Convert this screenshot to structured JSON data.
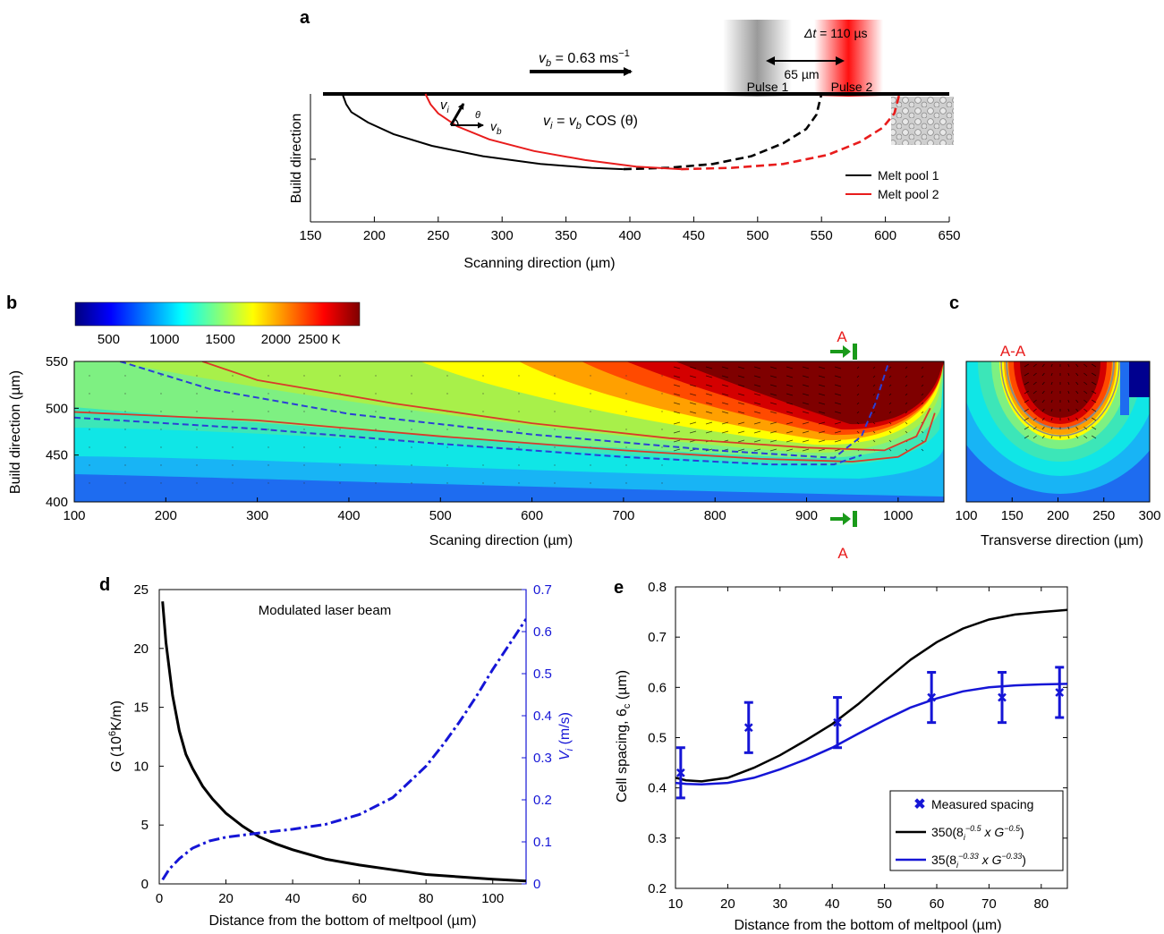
{
  "panels": {
    "a": "a",
    "b": "b",
    "c": "c",
    "d": "d",
    "e": "e"
  },
  "colors": {
    "black": "#000000",
    "red": "#e81c1c",
    "blue": "#1515d6",
    "green": "#1a9a1a"
  },
  "chart_data": [
    {
      "id": "a",
      "type": "line",
      "xlabel": "Scanning direction (µm)",
      "ylabel": "Build direction",
      "xlim": [
        150,
        650
      ],
      "xticks": [
        "150",
        "200",
        "250",
        "300",
        "350",
        "400",
        "450",
        "500",
        "550",
        "600",
        "650"
      ],
      "series": [
        {
          "name": "Melt pool 1",
          "color": "#000000",
          "solid": {
            "x": [
              175,
              178,
              182,
              195,
              215,
              245,
              285,
              330,
              370,
              395
            ],
            "y": [
              0,
              -8,
              -14,
              -22,
              -31,
              -40,
              -48,
              -54,
              -57,
              -58
            ]
          },
          "dashed": {
            "x": [
              395,
              430,
              465,
              495,
              520,
              538,
              546,
              550
            ],
            "y": [
              -58,
              -57,
              -54,
              -48,
              -38,
              -27,
              -16,
              0
            ]
          }
        },
        {
          "name": "Melt pool 2",
          "color": "#e81c1c",
          "solid": {
            "x": [
              240,
              244,
              250,
              265,
              290,
              325,
              365,
              405,
              440
            ],
            "y": [
              0,
              -8,
              -15,
              -25,
              -35,
              -44,
              -51,
              -56,
              -58
            ]
          },
          "dashed": {
            "x": [
              440,
              480,
              520,
              555,
              580,
              598,
              607,
              611
            ],
            "y": [
              -58,
              -57,
              -54,
              -47,
              -37,
              -26,
              -15,
              0
            ]
          }
        }
      ],
      "annotations": {
        "vb_label": "v",
        "vb_sub": "b",
        "vb_value": " = 0.63 ms",
        "vb_exp": "−1",
        "dt_label": "Δt",
        "dt_value": " = 110 µs",
        "dist_label": "65 µm",
        "pulse1": "Pulse 1",
        "pulse2": "Pulse 2",
        "vi": "v",
        "vi_sub": "i",
        "theta": "θ",
        "vb_small": "v",
        "vb_small_sub": "b",
        "eq_lhs": "v",
        "eq_lhs_sub": "i",
        "eq_mid": " = v",
        "eq_mid_sub": "b",
        "eq_rhs": " COS (θ)"
      }
    },
    {
      "id": "b",
      "type": "heatmap",
      "xlabel": "Scaning direction (µm)",
      "ylabel": "Build direction (µm)",
      "xlim": [
        100,
        1050
      ],
      "ylim": [
        400,
        550
      ],
      "xticks": [
        "100",
        "200",
        "300",
        "400",
        "500",
        "600",
        "700",
        "800",
        "900",
        "1000"
      ],
      "yticks": [
        "400",
        "450",
        "500",
        "550"
      ],
      "colorbar": {
        "ticks": [
          "500",
          "1000",
          "1500",
          "2000",
          "2500 K"
        ],
        "min": 200,
        "max": 2750
      },
      "section_label": "A",
      "contours": {
        "solid_red": [
          {
            "x": [
              100,
              300,
              500,
              700,
              850,
              950,
              1000,
              1030,
              1040
            ],
            "y": [
              496,
              487,
              470,
              455,
              446,
              443,
              448,
              465,
              495
            ]
          },
          {
            "x": [
              240,
              300,
              450,
              600,
              750,
              900,
              985,
              1020,
              1035
            ],
            "y": [
              550,
              530,
              505,
              484,
              468,
              458,
              455,
              470,
              500
            ]
          }
        ],
        "dashed_blue": [
          {
            "x": [
              100,
              300,
              500,
              700,
              860,
              930,
              960
            ],
            "y": [
              490,
              478,
              462,
              448,
              440,
              440,
              450
            ]
          },
          {
            "x": [
              150,
              250,
              400,
              600,
              800,
              930,
              960,
              975,
              990
            ],
            "y": [
              550,
              520,
              494,
              472,
              455,
              447,
              470,
              505,
              550
            ]
          }
        ]
      }
    },
    {
      "id": "c",
      "type": "heatmap",
      "title": "A-A",
      "xlabel": "Transverse direction (µm)",
      "xlim": [
        100,
        300
      ],
      "ylim": [
        400,
        550
      ],
      "xticks": [
        "100",
        "150",
        "200",
        "250",
        "300"
      ]
    },
    {
      "id": "d",
      "type": "line",
      "title": "Modulated laser beam",
      "xlabel": "Distance from the bottom of meltpool (µm)",
      "ylabel": "G (10⁶K/m)",
      "ylabel_right": "V_i (m/s)",
      "xlim": [
        0,
        110
      ],
      "ylim": [
        0,
        25
      ],
      "ylim_right": [
        0,
        0.7
      ],
      "xticks": [
        "0",
        "20",
        "40",
        "60",
        "80",
        "100"
      ],
      "yticks": [
        "0",
        "5",
        "10",
        "15",
        "20",
        "25"
      ],
      "yticks_right": [
        "0",
        "0.1",
        "0.2",
        "0.3",
        "0.4",
        "0.5",
        "0.6",
        "0.7"
      ],
      "series": [
        {
          "axis": "left",
          "color": "#000000",
          "style": "solid",
          "x": [
            1,
            2,
            4,
            6,
            8,
            10,
            13,
            16,
            20,
            25,
            30,
            35,
            40,
            50,
            60,
            70,
            80,
            90,
            100,
            110
          ],
          "y": [
            24,
            20.5,
            16,
            13,
            11,
            9.8,
            8.3,
            7.2,
            6.0,
            4.9,
            4.0,
            3.4,
            2.9,
            2.1,
            1.6,
            1.2,
            0.8,
            0.6,
            0.4,
            0.25
          ]
        },
        {
          "axis": "right",
          "color": "#1515d6",
          "style": "dashdot",
          "x": [
            1,
            3,
            6,
            10,
            15,
            20,
            30,
            40,
            50,
            60,
            70,
            80,
            85,
            90,
            95,
            100,
            105,
            110
          ],
          "y": [
            0.01,
            0.035,
            0.06,
            0.085,
            0.102,
            0.111,
            0.121,
            0.13,
            0.142,
            0.165,
            0.205,
            0.28,
            0.33,
            0.385,
            0.445,
            0.51,
            0.57,
            0.63
          ]
        }
      ]
    },
    {
      "id": "e",
      "type": "line",
      "xlabel": "Distance from the bottom of meltpool (µm)",
      "ylabel": "Cell spacing, 6_c (µm)",
      "xlim": [
        10,
        85
      ],
      "ylim": [
        0.2,
        0.8
      ],
      "xticks": [
        "10",
        "20",
        "30",
        "40",
        "50",
        "60",
        "70",
        "80"
      ],
      "yticks": [
        "0.2",
        "0.3",
        "0.4",
        "0.5",
        "0.6",
        "0.7",
        "0.8"
      ],
      "legend": {
        "measured": "Measured spacing",
        "fit1": "350(8",
        "fit1_sub": "i",
        "fit1_sup": "−0.5",
        "fit1_tail": " x G",
        "fit1_sup2": "−0.5",
        "fit2": "35(8",
        "fit2_sub": "i",
        "fit2_sup": "−0.33",
        "fit2_tail": " x G",
        "fit2_sup2": "−0.33"
      },
      "measured": {
        "x": [
          11,
          24,
          41,
          59,
          72.5,
          83.5
        ],
        "y": [
          0.43,
          0.52,
          0.53,
          0.58,
          0.58,
          0.59
        ],
        "err_low": [
          0.38,
          0.47,
          0.48,
          0.53,
          0.53,
          0.54
        ],
        "err_high": [
          0.48,
          0.57,
          0.58,
          0.63,
          0.63,
          0.64
        ]
      },
      "series": [
        {
          "color": "#000000",
          "x": [
            10,
            12,
            15,
            20,
            25,
            30,
            35,
            40,
            45,
            50,
            55,
            60,
            65,
            70,
            75,
            80,
            85
          ],
          "y": [
            0.42,
            0.415,
            0.413,
            0.42,
            0.44,
            0.465,
            0.495,
            0.527,
            0.567,
            0.612,
            0.655,
            0.69,
            0.717,
            0.735,
            0.745,
            0.75,
            0.754
          ]
        },
        {
          "color": "#1515d6",
          "x": [
            10,
            12,
            15,
            20,
            25,
            30,
            35,
            40,
            45,
            50,
            55,
            60,
            65,
            70,
            75,
            80,
            85
          ],
          "y": [
            0.41,
            0.408,
            0.407,
            0.41,
            0.42,
            0.437,
            0.457,
            0.48,
            0.508,
            0.535,
            0.56,
            0.578,
            0.592,
            0.6,
            0.604,
            0.606,
            0.607
          ]
        }
      ]
    }
  ]
}
